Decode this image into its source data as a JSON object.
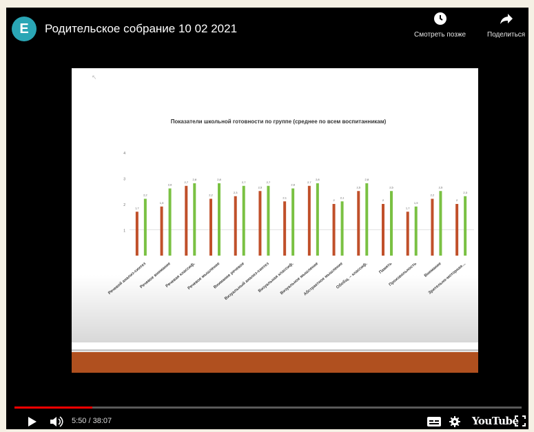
{
  "header": {
    "avatar_letter": "E",
    "title": "Родительское собрание 10 02 2021",
    "watch_later_label": "Смотреть позже",
    "share_label": "Поделиться"
  },
  "player": {
    "current_time": "5:50",
    "separator": "/",
    "duration": "38:07",
    "time_display": "5:50 / 38:07",
    "progress_fraction": 0.153,
    "brand": "YouTube"
  },
  "colors": {
    "accent_red": "#ff0000",
    "series_orange": "#c0502a",
    "series_green": "#7ac143",
    "band": "#b0501f"
  },
  "chart_data": {
    "type": "bar",
    "title": "Показатели школьной готовности по группе (среднее по всем воспитанникам)",
    "ylim": [
      0,
      4
    ],
    "yticks": [
      "",
      "1",
      "2",
      "3",
      "4"
    ],
    "categories": [
      "Речевой анализ-синтез",
      "Речевое внимание",
      "Речевая классиф.",
      "Речевое мышление",
      "Внимание речевое",
      "Визуальный анализ-синтез",
      "Визуальная классиф.",
      "Визуальное мышление",
      "Абстрактное мышление",
      "Обобщ. – классиф.",
      "Память",
      "Произвольность",
      "Внимание",
      "Зрительно-моторная…"
    ],
    "series": [
      {
        "values": [
          1.7,
          1.9,
          2.7,
          2.2,
          2.3,
          2.5,
          2.1,
          2.7,
          2.0,
          2.5,
          2.0,
          1.7,
          2.2,
          2.0
        ]
      },
      {
        "values": [
          2.2,
          2.6,
          2.8,
          2.8,
          2.7,
          2.7,
          2.6,
          2.8,
          2.1,
          2.8,
          2.5,
          1.9,
          2.5,
          2.3
        ]
      }
    ]
  }
}
